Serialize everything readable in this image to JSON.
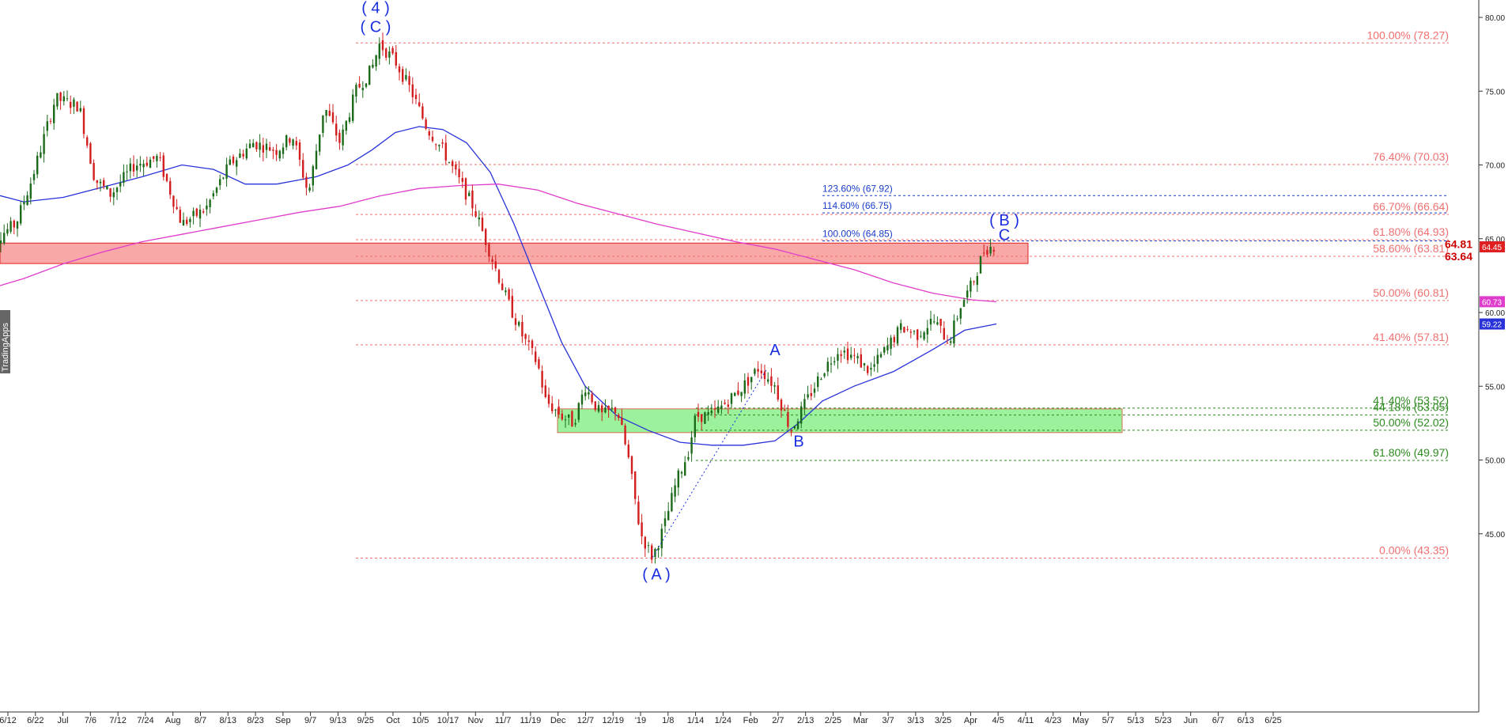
{
  "chart_data": {
    "type": "candlestick",
    "watermark": "TradingApps",
    "ylim": [
      42,
      82
    ],
    "y_ticks": [
      "45.00",
      "50.00",
      "55.00",
      "60.00",
      "65.00",
      "70.00",
      "75.00",
      "80.00"
    ],
    "x_ticks": [
      "6/12",
      "6/22",
      "Jul",
      "7/6",
      "7/12",
      "7/24",
      "Aug",
      "8/7",
      "8/13",
      "8/23",
      "Sep",
      "9/7",
      "9/13",
      "9/25",
      "Oct",
      "10/5",
      "10/17",
      "Nov",
      "11/7",
      "11/19",
      "Dec",
      "12/7",
      "12/19",
      "'19",
      "1/8",
      "1/14",
      "1/24",
      "Feb",
      "2/7",
      "2/13",
      "2/25",
      "Mar",
      "3/7",
      "3/13",
      "3/25",
      "Apr",
      "4/5",
      "4/11",
      "4/23",
      "May",
      "5/7",
      "5/13",
      "5/23",
      "Jun",
      "6/7",
      "6/13",
      "6/25"
    ],
    "price_path": [
      [
        0,
        64.5
      ],
      [
        0.04,
        66
      ],
      [
        0.06,
        69
      ],
      [
        0.09,
        74.5
      ],
      [
        0.12,
        74
      ],
      [
        0.14,
        69
      ],
      [
        0.16,
        68
      ],
      [
        0.19,
        70
      ],
      [
        0.22,
        70.5
      ],
      [
        0.25,
        66
      ],
      [
        0.28,
        67
      ],
      [
        0.31,
        70
      ],
      [
        0.34,
        71.5
      ],
      [
        0.37,
        71
      ],
      [
        0.39,
        72
      ],
      [
        0.41,
        68
      ],
      [
        0.43,
        74
      ],
      [
        0.45,
        71.5
      ],
      [
        0.47,
        75
      ],
      [
        0.49,
        76.5
      ],
      [
        0.5,
        78.2
      ],
      [
        0.52,
        77
      ],
      [
        0.54,
        75
      ],
      [
        0.56,
        72.5
      ],
      [
        0.58,
        71
      ],
      [
        0.6,
        69
      ],
      [
        0.62,
        67
      ],
      [
        0.64,
        64
      ],
      [
        0.66,
        61
      ],
      [
        0.68,
        58.5
      ],
      [
        0.7,
        56.5
      ],
      [
        0.71,
        54
      ],
      [
        0.73,
        53
      ],
      [
        0.745,
        52.5
      ],
      [
        0.76,
        55
      ],
      [
        0.78,
        53
      ],
      [
        0.8,
        53.5
      ],
      [
        0.815,
        50
      ],
      [
        0.83,
        45
      ],
      [
        0.845,
        43.4
      ],
      [
        0.86,
        45.5
      ],
      [
        0.875,
        48.5
      ],
      [
        0.89,
        50.5
      ],
      [
        0.9,
        53
      ],
      [
        0.92,
        53
      ],
      [
        0.94,
        54
      ],
      [
        0.96,
        55
      ],
      [
        0.98,
        56.3
      ],
      [
        1.0,
        55
      ],
      [
        1.02,
        52
      ],
      [
        1.04,
        54
      ],
      [
        1.06,
        56
      ],
      [
        1.08,
        57.5
      ],
      [
        1.1,
        57
      ],
      [
        1.12,
        56
      ],
      [
        1.14,
        57.5
      ],
      [
        1.16,
        59
      ],
      [
        1.18,
        58.5
      ],
      [
        1.2,
        59.5
      ],
      [
        1.22,
        58
      ],
      [
        1.235,
        60.5
      ],
      [
        1.25,
        62
      ],
      [
        1.265,
        64.3
      ],
      [
        1.28,
        64.6
      ]
    ],
    "moving_averages": [
      {
        "color": "#2832d8",
        "path": [
          [
            0,
            68.2
          ],
          [
            0.05,
            67.5
          ],
          [
            0.1,
            67.8
          ],
          [
            0.15,
            68.5
          ],
          [
            0.2,
            69.2
          ],
          [
            0.25,
            70
          ],
          [
            0.29,
            69.7
          ],
          [
            0.33,
            68.7
          ],
          [
            0.37,
            68.7
          ],
          [
            0.42,
            69.2
          ],
          [
            0.46,
            70
          ],
          [
            0.49,
            71
          ],
          [
            0.52,
            72.2
          ],
          [
            0.55,
            72.6
          ],
          [
            0.58,
            72.4
          ],
          [
            0.61,
            71.5
          ],
          [
            0.64,
            69.5
          ],
          [
            0.67,
            66
          ],
          [
            0.7,
            62
          ],
          [
            0.73,
            58
          ],
          [
            0.76,
            55
          ],
          [
            0.8,
            53
          ],
          [
            0.84,
            52
          ],
          [
            0.88,
            51.2
          ],
          [
            0.92,
            51
          ],
          [
            0.96,
            51
          ],
          [
            1.0,
            51.3
          ],
          [
            1.03,
            52.5
          ],
          [
            1.06,
            54
          ],
          [
            1.1,
            55
          ],
          [
            1.15,
            56
          ],
          [
            1.2,
            57.5
          ],
          [
            1.24,
            58.8
          ],
          [
            1.28,
            59.22
          ]
        ],
        "last_value": "59.22"
      },
      {
        "color": "#e03ccc",
        "path": [
          [
            0,
            61.5
          ],
          [
            0.05,
            62.3
          ],
          [
            0.1,
            63.3
          ],
          [
            0.15,
            64.1
          ],
          [
            0.2,
            64.8
          ],
          [
            0.25,
            65.3
          ],
          [
            0.3,
            65.8
          ],
          [
            0.35,
            66.3
          ],
          [
            0.4,
            66.8
          ],
          [
            0.45,
            67.2
          ],
          [
            0.5,
            67.9
          ],
          [
            0.55,
            68.4
          ],
          [
            0.6,
            68.6
          ],
          [
            0.65,
            68.7
          ],
          [
            0.7,
            68.3
          ],
          [
            0.75,
            67.4
          ],
          [
            0.8,
            66.7
          ],
          [
            0.85,
            66
          ],
          [
            0.9,
            65.4
          ],
          [
            0.95,
            64.8
          ],
          [
            1.0,
            64.3
          ],
          [
            1.05,
            63.6
          ],
          [
            1.1,
            62.9
          ],
          [
            1.15,
            62
          ],
          [
            1.2,
            61.3
          ],
          [
            1.25,
            60.85
          ],
          [
            1.28,
            60.73
          ]
        ],
        "last_value": "60.73"
      }
    ],
    "fib_red": [
      {
        "label": "100.00% (78.27)",
        "value": 78.27
      },
      {
        "label": "76.40% (70.03)",
        "value": 70.03
      },
      {
        "label": "66.70% (66.64)",
        "value": 66.64
      },
      {
        "label": "61.80% (64.93)",
        "value": 64.93
      },
      {
        "label": "58.60% (63.81)",
        "value": 63.81
      },
      {
        "label": "50.00% (60.81)",
        "value": 60.81
      },
      {
        "label": "41.40% (57.81)",
        "value": 57.81
      },
      {
        "label": "0.00% (43.35)",
        "value": 43.35
      }
    ],
    "fib_green": [
      {
        "label": "41.40% (53.52)",
        "value": 53.52
      },
      {
        "label": "44.18% (53.05)",
        "value": 53.05
      },
      {
        "label": "50.00% (52.02)",
        "value": 52.02
      },
      {
        "label": "61.80% (49.97)",
        "value": 49.97
      }
    ],
    "fib_blue": [
      {
        "label": "123.60% (67.92)",
        "value": 67.92
      },
      {
        "label": "114.60% (66.75)",
        "value": 66.75
      },
      {
        "label": "100.00% (64.85)",
        "value": 64.85
      }
    ],
    "waves": [
      {
        "label": "( 4 )",
        "x": 0.495,
        "y": 80.3
      },
      {
        "label": "( C )",
        "x": 0.495,
        "y": 79.0
      },
      {
        "label": "( A )",
        "x": 0.85,
        "y": 41.9
      },
      {
        "label": "A",
        "x": 1.0,
        "y": 57.1
      },
      {
        "label": "B",
        "x": 1.03,
        "y": 50.9
      },
      {
        "label": "( B )",
        "x": 1.29,
        "y": 65.9
      },
      {
        "label": "C",
        "x": 1.29,
        "y": 64.9
      }
    ],
    "resistance_zone": {
      "top": 64.81,
      "bottom": 63.64,
      "top_label": "64.81",
      "bottom_label": "63.64"
    },
    "support_zone": {
      "top": 53.52,
      "bottom": 52.02
    },
    "last_price": "64.45"
  }
}
